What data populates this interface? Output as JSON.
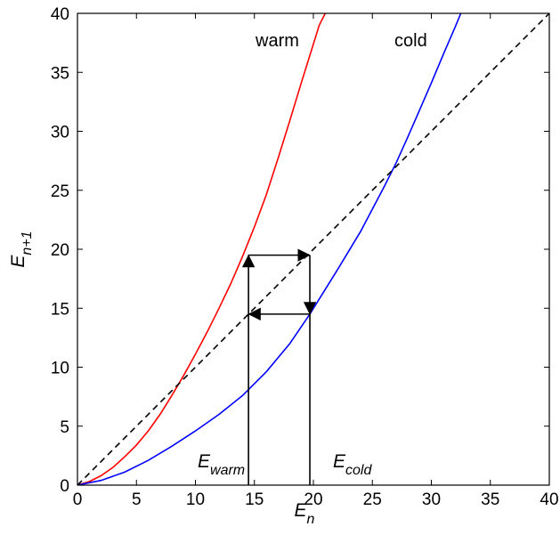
{
  "chart_data": {
    "type": "line",
    "title": "",
    "xlabel": {
      "main": "E",
      "sub": "n"
    },
    "ylabel": {
      "main": "E",
      "sub": "n+1"
    },
    "xlim": [
      0,
      40
    ],
    "ylim": [
      0,
      40
    ],
    "xticks": [
      "0",
      "5",
      "10",
      "15",
      "20",
      "25",
      "30",
      "35",
      "40"
    ],
    "yticks": [
      "0",
      "5",
      "10",
      "15",
      "20",
      "25",
      "30",
      "35",
      "40"
    ],
    "grid": false,
    "series": [
      {
        "name": "warm",
        "color": "#ff0000",
        "x": [
          0,
          1,
          2,
          3,
          4,
          5,
          6,
          7,
          8,
          9,
          10,
          11,
          12,
          13,
          14,
          15,
          16,
          17,
          18,
          19,
          20,
          20.5,
          21
        ],
        "y": [
          0,
          0.3,
          0.8,
          1.5,
          2.4,
          3.4,
          4.6,
          6.0,
          7.6,
          9.3,
          11.1,
          13.0,
          15.0,
          17.1,
          19.4,
          21.9,
          24.6,
          27.7,
          30.9,
          34.2,
          37.4,
          39.0,
          40
        ]
      },
      {
        "name": "cold",
        "color": "#0000ff",
        "x": [
          0,
          2,
          4,
          6,
          8,
          10,
          12,
          14,
          16,
          18,
          19.7,
          22,
          24,
          26,
          27,
          28,
          29,
          30,
          31,
          32,
          32.5
        ],
        "y": [
          0,
          0.4,
          1.1,
          2.1,
          3.3,
          4.6,
          6.0,
          7.6,
          9.6,
          12.0,
          14.5,
          18.2,
          21.5,
          25.3,
          27.3,
          29.5,
          31.8,
          34.1,
          36.5,
          38.8,
          40
        ]
      },
      {
        "name": "",
        "color": "#000000",
        "dashed": true,
        "x": [
          0,
          40
        ],
        "y": [
          0,
          40
        ]
      }
    ],
    "annotations": {
      "warm_label": "warm",
      "cold_label": "cold",
      "e_warm": {
        "main": "E",
        "sub": "warm",
        "x": 14.5
      },
      "e_cold": {
        "main": "E",
        "sub": "cold",
        "x": 19.7
      },
      "path_points": [
        {
          "x": 14.5,
          "y": 0
        },
        {
          "x": 14.5,
          "y": 19.5
        },
        {
          "x": 19.7,
          "y": 19.5
        },
        {
          "x": 19.7,
          "y": 14.5
        },
        {
          "x": 14.5,
          "y": 14.5
        }
      ],
      "cold_drop": {
        "x": 19.7,
        "y_top": 14.5,
        "y_bottom": 0
      }
    }
  }
}
